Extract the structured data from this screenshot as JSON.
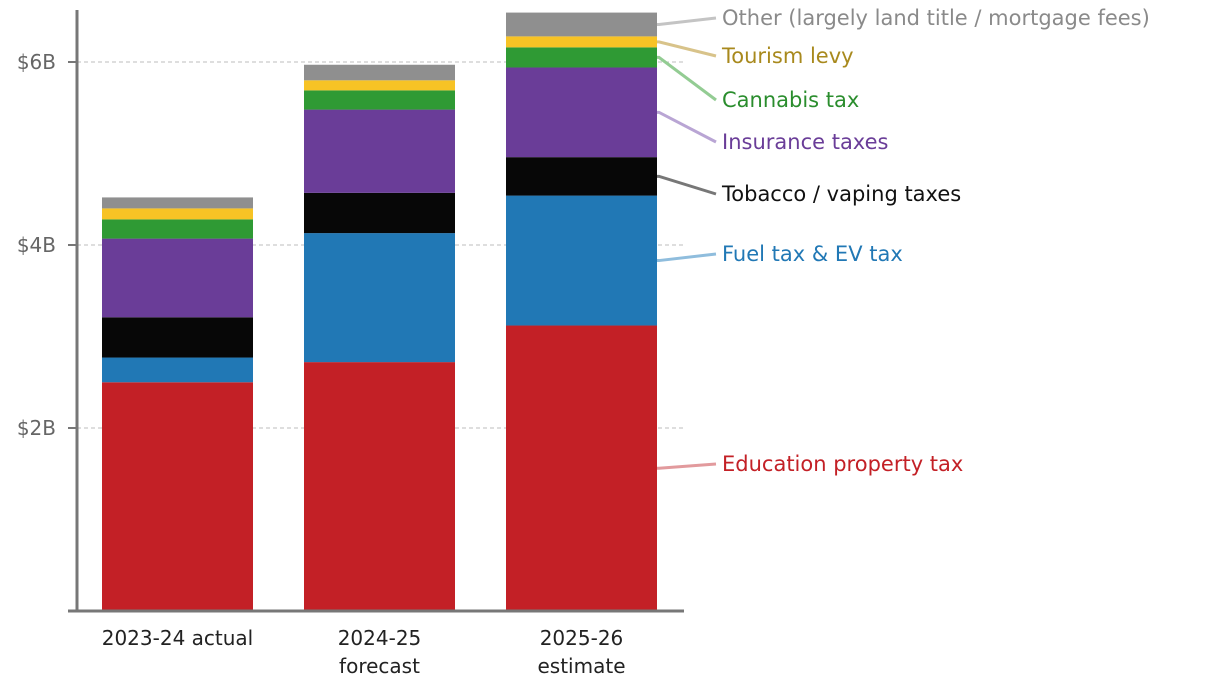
{
  "chart_data": {
    "type": "bar",
    "stacked": true,
    "title": "",
    "xlabel": "",
    "ylabel": "",
    "ylim": [
      0,
      6.55
    ],
    "unit": "billions of dollars",
    "grid": true,
    "legend_placement": "right",
    "yticks": [
      {
        "value": 2,
        "label": "$2B"
      },
      {
        "value": 4,
        "label": "$4B"
      },
      {
        "value": 6,
        "label": "$6B"
      }
    ],
    "categories": [
      {
        "line1": "2023-24 actual",
        "line2": ""
      },
      {
        "line1": "2024-25",
        "line2": "forecast"
      },
      {
        "line1": "2025-26",
        "line2": "estimate"
      }
    ],
    "series": [
      {
        "name": "Education property tax",
        "color": "#c32026",
        "text_color": "#c32026",
        "leader_color": "#e29a9d",
        "values": [
          2.5,
          2.72,
          3.12
        ]
      },
      {
        "name": "Fuel tax & EV tax",
        "color": "#2178b5",
        "text_color": "#2178b5",
        "leader_color": "#8fbddd",
        "values": [
          0.27,
          1.41,
          1.42
        ]
      },
      {
        "name": "Tobacco / vaping taxes",
        "color": "#070707",
        "text_color": "#111111",
        "leader_color": "#777777",
        "values": [
          0.44,
          0.44,
          0.42
        ]
      },
      {
        "name": "Insurance taxes",
        "color": "#6a3d98",
        "text_color": "#6a3d98",
        "leader_color": "#b9a5d4",
        "values": [
          0.86,
          0.91,
          0.98
        ]
      },
      {
        "name": "Cannabis tax",
        "color": "#2f9a34",
        "text_color": "#2a8d2d",
        "leader_color": "#93cc93",
        "values": [
          0.21,
          0.21,
          0.22
        ]
      },
      {
        "name": "Tourism levy",
        "color": "#f7c325",
        "text_color": "#a8891d",
        "leader_color": "#d8c38a",
        "values": [
          0.12,
          0.11,
          0.12
        ]
      },
      {
        "name": "Other (largely land title / mortgage fees)",
        "color": "#8f8f8f",
        "text_color": "#8a8a8a",
        "leader_color": "#c4c4c4",
        "values": [
          0.12,
          0.17,
          0.26
        ]
      }
    ]
  }
}
